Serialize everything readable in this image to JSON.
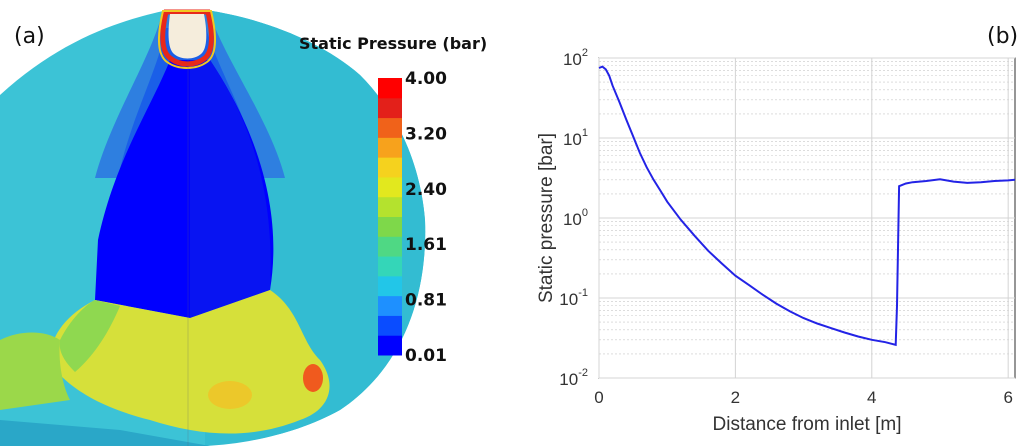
{
  "figure": {
    "panel_a_label": "(a)",
    "panel_b_label": "(b)"
  },
  "contour": {
    "legend_title": "Static Pressure (bar)",
    "legend_ticks": [
      "4.00",
      "3.20",
      "2.40",
      "1.61",
      "0.81",
      "0.01"
    ],
    "colormap": [
      "#0000ff",
      "#0a4cff",
      "#1e90ff",
      "#22c6e8",
      "#34d6b8",
      "#4fd884",
      "#7ed84a",
      "#b4e22e",
      "#e2e81e",
      "#f5d21e",
      "#f7a21c",
      "#f0621a",
      "#e3201a",
      "#ff0000"
    ]
  },
  "chart_data": {
    "type": "line",
    "title": "",
    "xlabel": "Distance from inlet [m]",
    "ylabel": "Static pressure [bar]",
    "xlim": [
      0,
      6.1
    ],
    "ylim": [
      0.01,
      100
    ],
    "yscale": "log",
    "grid": true,
    "line_color": "#2323e6",
    "x_ticks": [
      "0",
      "2",
      "4",
      "6"
    ],
    "y_ticks": [
      {
        "base": "10",
        "exp": "2"
      },
      {
        "base": "10",
        "exp": "1"
      },
      {
        "base": "10",
        "exp": "0"
      },
      {
        "base": "10",
        "exp": "-1"
      },
      {
        "base": "10",
        "exp": "-2"
      }
    ],
    "series": [
      {
        "x": [
          0,
          0.05,
          0.1,
          0.15,
          0.2,
          0.3,
          0.4,
          0.5,
          0.6,
          0.7,
          0.8,
          0.9,
          1.0,
          1.2,
          1.4,
          1.6,
          1.8,
          2.0,
          2.2,
          2.4,
          2.6,
          2.8,
          3.0,
          3.2,
          3.4,
          3.6,
          3.8,
          4.0,
          4.2,
          4.35,
          4.37,
          4.4,
          4.5,
          4.6,
          4.8,
          5.0,
          5.2,
          5.4,
          5.6,
          5.8,
          6.0,
          6.1
        ],
        "y": [
          75,
          78,
          72,
          60,
          45,
          28,
          17,
          10.5,
          6.5,
          4.3,
          3.0,
          2.2,
          1.6,
          0.95,
          0.6,
          0.39,
          0.27,
          0.19,
          0.145,
          0.11,
          0.085,
          0.068,
          0.056,
          0.048,
          0.042,
          0.037,
          0.033,
          0.03,
          0.028,
          0.026,
          0.08,
          2.5,
          2.7,
          2.8,
          2.9,
          3.05,
          2.85,
          2.75,
          2.8,
          2.9,
          2.95,
          3.0
        ]
      }
    ]
  }
}
